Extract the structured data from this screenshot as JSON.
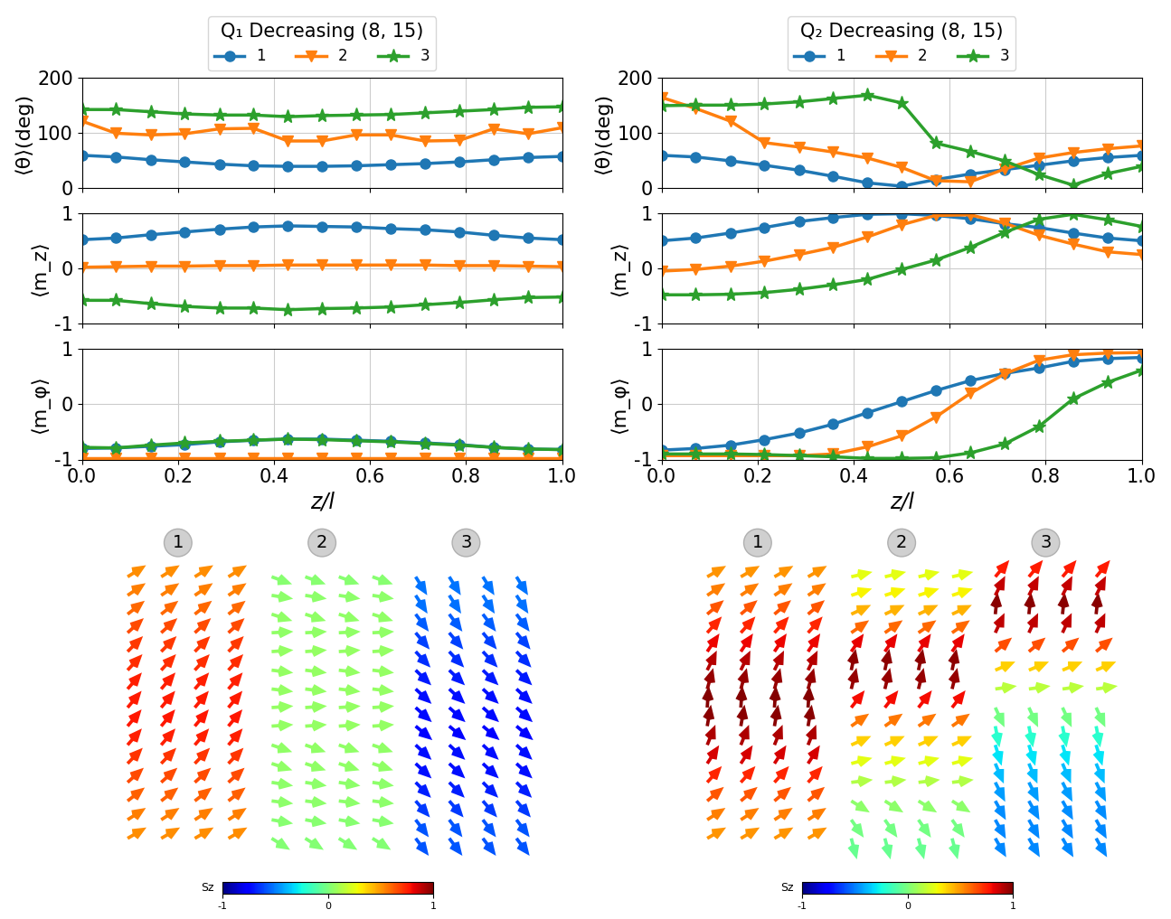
{
  "chart_data": [
    {
      "type": "line",
      "title": "Q₁ Decreasing (8, 15)",
      "legend": "lower center",
      "y_label": "⟨θ⟩(deg)",
      "tick_labels": "y",
      "grid": true,
      "x": [
        0.0,
        0.071,
        0.143,
        0.214,
        0.286,
        0.357,
        0.429,
        0.5,
        0.571,
        0.643,
        0.714,
        0.786,
        0.857,
        0.929,
        1.0
      ],
      "xlim": [
        0.0,
        1.0
      ],
      "xticks": [
        {
          "value": 0.0,
          "label": "0.0"
        },
        {
          "value": 0.2,
          "label": "0.2"
        },
        {
          "value": 0.4,
          "label": "0.4"
        },
        {
          "value": 0.6,
          "label": "0.6"
        },
        {
          "value": 0.8,
          "label": "0.8"
        },
        {
          "value": 1.0,
          "label": "1.0"
        }
      ],
      "ylim": [
        0,
        200
      ],
      "yticks": [
        0,
        100,
        200
      ],
      "series": [
        {
          "name": "1",
          "color": "#1f77b4",
          "marker": "o",
          "values": [
            60,
            57,
            52,
            48,
            44,
            41,
            40,
            40,
            41,
            43,
            45,
            48,
            52,
            56,
            58
          ]
        },
        {
          "name": "2",
          "color": "#ff7f0e",
          "marker": "v",
          "values": [
            122,
            100,
            97,
            99,
            108,
            109,
            86,
            86,
            97,
            97,
            86,
            87,
            108,
            99,
            110
          ]
        },
        {
          "name": "3",
          "color": "#2ca02c",
          "marker": "*",
          "values": [
            143,
            143,
            139,
            135,
            133,
            133,
            130,
            132,
            133,
            134,
            137,
            140,
            143,
            147,
            148
          ]
        }
      ]
    },
    {
      "type": "line",
      "y_label": "⟨m_z⟩",
      "tick_labels": "y",
      "grid": true,
      "x": [
        0.0,
        0.071,
        0.143,
        0.214,
        0.286,
        0.357,
        0.429,
        0.5,
        0.571,
        0.643,
        0.714,
        0.786,
        0.857,
        0.929,
        1.0
      ],
      "xlim": [
        0.0,
        1.0
      ],
      "xticks": [
        {
          "value": 0.0,
          "label": "0.0"
        },
        {
          "value": 0.2,
          "label": "0.2"
        },
        {
          "value": 0.4,
          "label": "0.4"
        },
        {
          "value": 0.6,
          "label": "0.6"
        },
        {
          "value": 0.8,
          "label": "0.8"
        },
        {
          "value": 1.0,
          "label": "1.0"
        }
      ],
      "ylim": [
        -1,
        1
      ],
      "yticks": [
        -1,
        0,
        1
      ],
      "series": [
        {
          "name": "1",
          "color": "#1f77b4",
          "marker": "o",
          "values": [
            0.52,
            0.55,
            0.61,
            0.66,
            0.71,
            0.75,
            0.77,
            0.76,
            0.75,
            0.72,
            0.7,
            0.66,
            0.6,
            0.55,
            0.52
          ]
        },
        {
          "name": "2",
          "color": "#ff7f0e",
          "marker": "v",
          "values": [
            0.02,
            0.03,
            0.04,
            0.04,
            0.05,
            0.05,
            0.06,
            0.06,
            0.06,
            0.06,
            0.06,
            0.05,
            0.05,
            0.04,
            0.03
          ]
        },
        {
          "name": "3",
          "color": "#2ca02c",
          "marker": "*",
          "values": [
            -0.58,
            -0.58,
            -0.64,
            -0.69,
            -0.72,
            -0.72,
            -0.75,
            -0.73,
            -0.72,
            -0.7,
            -0.66,
            -0.62,
            -0.57,
            -0.53,
            -0.52
          ]
        }
      ]
    },
    {
      "type": "line",
      "y_label": "⟨m_φ⟩",
      "x_label": "z/l",
      "grid": true,
      "x": [
        0.0,
        0.071,
        0.143,
        0.214,
        0.286,
        0.357,
        0.429,
        0.5,
        0.571,
        0.643,
        0.714,
        0.786,
        0.857,
        0.929,
        1.0
      ],
      "xlim": [
        0.0,
        1.0
      ],
      "xticks": [
        {
          "value": 0.0,
          "label": "0.0"
        },
        {
          "value": 0.2,
          "label": "0.2"
        },
        {
          "value": 0.4,
          "label": "0.4"
        },
        {
          "value": 0.6,
          "label": "0.6"
        },
        {
          "value": 0.8,
          "label": "0.8"
        },
        {
          "value": 1.0,
          "label": "1.0"
        }
      ],
      "ylim": [
        -1,
        1
      ],
      "yticks": [
        -1,
        0,
        1
      ],
      "series": [
        {
          "name": "1",
          "color": "#1f77b4",
          "marker": "o",
          "values": [
            -0.8,
            -0.79,
            -0.76,
            -0.73,
            -0.68,
            -0.65,
            -0.63,
            -0.63,
            -0.65,
            -0.67,
            -0.7,
            -0.73,
            -0.78,
            -0.81,
            -0.82
          ]
        },
        {
          "name": "2",
          "color": "#ff7f0e",
          "marker": "v",
          "values": [
            -0.98,
            -0.98,
            -0.98,
            -0.98,
            -0.98,
            -0.98,
            -0.98,
            -0.98,
            -0.98,
            -0.98,
            -0.98,
            -0.98,
            -0.98,
            -0.98,
            -0.98
          ]
        },
        {
          "name": "3",
          "color": "#2ca02c",
          "marker": "*",
          "values": [
            -0.78,
            -0.79,
            -0.74,
            -0.7,
            -0.67,
            -0.65,
            -0.63,
            -0.64,
            -0.66,
            -0.68,
            -0.71,
            -0.74,
            -0.78,
            -0.81,
            -0.82
          ]
        }
      ]
    },
    {
      "type": "line",
      "title": "Q₂ Decreasing (8, 15)",
      "legend": "lower center",
      "y_label": "⟨θ⟩(deg)",
      "tick_labels": "y",
      "grid": true,
      "x": [
        0.0,
        0.071,
        0.143,
        0.214,
        0.286,
        0.357,
        0.429,
        0.5,
        0.571,
        0.643,
        0.714,
        0.786,
        0.857,
        0.929,
        1.0
      ],
      "xlim": [
        0.0,
        1.0
      ],
      "xticks": [
        {
          "value": 0.0,
          "label": "0.0"
        },
        {
          "value": 0.2,
          "label": "0.2"
        },
        {
          "value": 0.4,
          "label": "0.4"
        },
        {
          "value": 0.6,
          "label": "0.6"
        },
        {
          "value": 0.8,
          "label": "0.8"
        },
        {
          "value": 1.0,
          "label": "1.0"
        }
      ],
      "ylim": [
        0,
        200
      ],
      "yticks": [
        0,
        100,
        200
      ],
      "series": [
        {
          "name": "1",
          "color": "#1f77b4",
          "marker": "o",
          "values": [
            60,
            57,
            50,
            42,
            33,
            22,
            10,
            4,
            16,
            26,
            34,
            42,
            50,
            56,
            60
          ]
        },
        {
          "name": "2",
          "color": "#ff7f0e",
          "marker": "v",
          "values": [
            165,
            145,
            122,
            83,
            75,
            66,
            55,
            38,
            14,
            12,
            35,
            55,
            65,
            72,
            77
          ]
        },
        {
          "name": "3",
          "color": "#2ca02c",
          "marker": "*",
          "values": [
            150,
            151,
            151,
            153,
            157,
            163,
            169,
            155,
            82,
            67,
            50,
            25,
            6,
            27,
            40
          ]
        }
      ]
    },
    {
      "type": "line",
      "y_label": "⟨m_z⟩",
      "tick_labels": "y",
      "grid": true,
      "x": [
        0.0,
        0.071,
        0.143,
        0.214,
        0.286,
        0.357,
        0.429,
        0.5,
        0.571,
        0.643,
        0.714,
        0.786,
        0.857,
        0.929,
        1.0
      ],
      "xlim": [
        0.0,
        1.0
      ],
      "xticks": [
        {
          "value": 0.0,
          "label": "0.0"
        },
        {
          "value": 0.2,
          "label": "0.2"
        },
        {
          "value": 0.4,
          "label": "0.4"
        },
        {
          "value": 0.6,
          "label": "0.6"
        },
        {
          "value": 0.8,
          "label": "0.8"
        },
        {
          "value": 1.0,
          "label": "1.0"
        }
      ],
      "ylim": [
        -1,
        1
      ],
      "yticks": [
        -1,
        0,
        1
      ],
      "series": [
        {
          "name": "1",
          "color": "#1f77b4",
          "marker": "o",
          "values": [
            0.5,
            0.55,
            0.64,
            0.74,
            0.85,
            0.92,
            0.98,
            0.99,
            0.96,
            0.9,
            0.81,
            0.74,
            0.64,
            0.55,
            0.5
          ]
        },
        {
          "name": "2",
          "color": "#ff7f0e",
          "marker": "v",
          "values": [
            -0.05,
            -0.02,
            0.04,
            0.13,
            0.25,
            0.38,
            0.57,
            0.79,
            0.96,
            0.97,
            0.82,
            0.6,
            0.44,
            0.3,
            0.25
          ]
        },
        {
          "name": "3",
          "color": "#2ca02c",
          "marker": "*",
          "values": [
            -0.48,
            -0.48,
            -0.47,
            -0.44,
            -0.38,
            -0.3,
            -0.2,
            -0.02,
            0.15,
            0.38,
            0.65,
            0.89,
            0.98,
            0.88,
            0.76
          ]
        }
      ]
    },
    {
      "type": "line",
      "y_label": "⟨m_φ⟩",
      "x_label": "z/l",
      "grid": true,
      "x": [
        0.0,
        0.071,
        0.143,
        0.214,
        0.286,
        0.357,
        0.429,
        0.5,
        0.571,
        0.643,
        0.714,
        0.786,
        0.857,
        0.929,
        1.0
      ],
      "xlim": [
        0.0,
        1.0
      ],
      "xticks": [
        {
          "value": 0.0,
          "label": "0.0"
        },
        {
          "value": 0.2,
          "label": "0.2"
        },
        {
          "value": 0.4,
          "label": "0.4"
        },
        {
          "value": 0.6,
          "label": "0.6"
        },
        {
          "value": 0.8,
          "label": "0.8"
        },
        {
          "value": 1.0,
          "label": "1.0"
        }
      ],
      "ylim": [
        -1,
        1
      ],
      "yticks": [
        -1,
        0,
        1
      ],
      "series": [
        {
          "name": "1",
          "color": "#1f77b4",
          "marker": "o",
          "values": [
            -0.83,
            -0.8,
            -0.74,
            -0.64,
            -0.52,
            -0.36,
            -0.15,
            0.05,
            0.25,
            0.43,
            0.56,
            0.66,
            0.78,
            0.83,
            0.85
          ]
        },
        {
          "name": "2",
          "color": "#ff7f0e",
          "marker": "v",
          "values": [
            -0.93,
            -0.93,
            -0.93,
            -0.93,
            -0.93,
            -0.9,
            -0.77,
            -0.57,
            -0.23,
            0.2,
            0.55,
            0.8,
            0.9,
            0.93,
            0.94
          ]
        },
        {
          "name": "3",
          "color": "#2ca02c",
          "marker": "*",
          "values": [
            -0.9,
            -0.9,
            -0.9,
            -0.91,
            -0.93,
            -0.95,
            -0.98,
            -0.98,
            -0.97,
            -0.88,
            -0.72,
            -0.4,
            0.1,
            0.4,
            0.62
          ]
        }
      ]
    }
  ],
  "illustrations": [
    {
      "labels": [
        "1",
        "2",
        "3"
      ],
      "colorbar": {
        "label": "Sz",
        "lim": [
          -1,
          1
        ],
        "ticks": [
          -1,
          0,
          1
        ]
      }
    },
    {
      "labels": [
        "1",
        "2",
        "3"
      ],
      "colorbar": {
        "label": "Sz",
        "lim": [
          -1,
          1
        ],
        "ticks": [
          -1,
          0,
          1
        ]
      }
    }
  ]
}
